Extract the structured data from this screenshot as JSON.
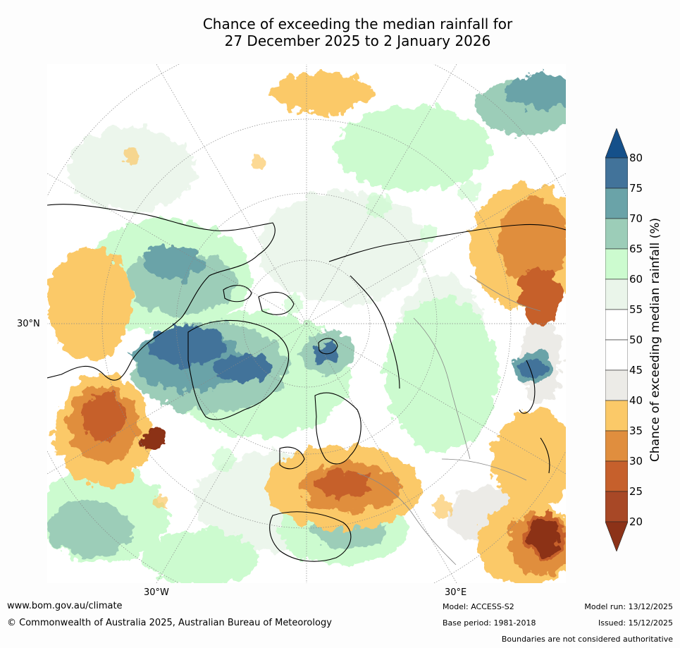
{
  "title": {
    "line1": "Chance of exceeding the median rainfall for",
    "line2": "27 December 2025 to 2 January 2026"
  },
  "map": {
    "projection": "Northern hemisphere polar stereographic",
    "lat_labels": [
      "30°N"
    ],
    "lon_labels": [
      "30°W",
      "30°E"
    ]
  },
  "colorbar": {
    "label": "Chance of exceeding median rainfall (%)",
    "ticks": [
      "80",
      "75",
      "70",
      "65",
      "60",
      "55",
      "50",
      "45",
      "40",
      "35",
      "30",
      "25",
      "20"
    ],
    "bands": [
      {
        "range": "> 80",
        "color": "#15508a"
      },
      {
        "range": "75-80",
        "color": "#42739a"
      },
      {
        "range": "70-75",
        "color": "#6aa3a8"
      },
      {
        "range": "65-70",
        "color": "#9ccdb8"
      },
      {
        "range": "60-65",
        "color": "#ccfbcf"
      },
      {
        "range": "55-60",
        "color": "#eaf5ea"
      },
      {
        "range": "50-55",
        "color": "#ffffff"
      },
      {
        "range": "45-50",
        "color": "#ffffff"
      },
      {
        "range": "40-45",
        "color": "#ecebe7"
      },
      {
        "range": "35-40",
        "color": "#fbc968"
      },
      {
        "range": "30-35",
        "color": "#e08e3e"
      },
      {
        "range": "25-30",
        "color": "#c6602c"
      },
      {
        "range": "20-25",
        "color": "#a84826"
      },
      {
        "range": "< 20",
        "color": "#8c3218"
      }
    ]
  },
  "footer": {
    "url": "www.bom.gov.au/climate",
    "copyright": "© Commonwealth of Australia 2025, Australian Bureau of Meteorology",
    "model": "Model: ACCESS-S2",
    "base_period": "Base period: 1981-2018",
    "model_run": "Model run: 13/12/2025",
    "issued": "Issued: 15/12/2025",
    "disclaimer": "Boundaries are not considered authoritative"
  }
}
